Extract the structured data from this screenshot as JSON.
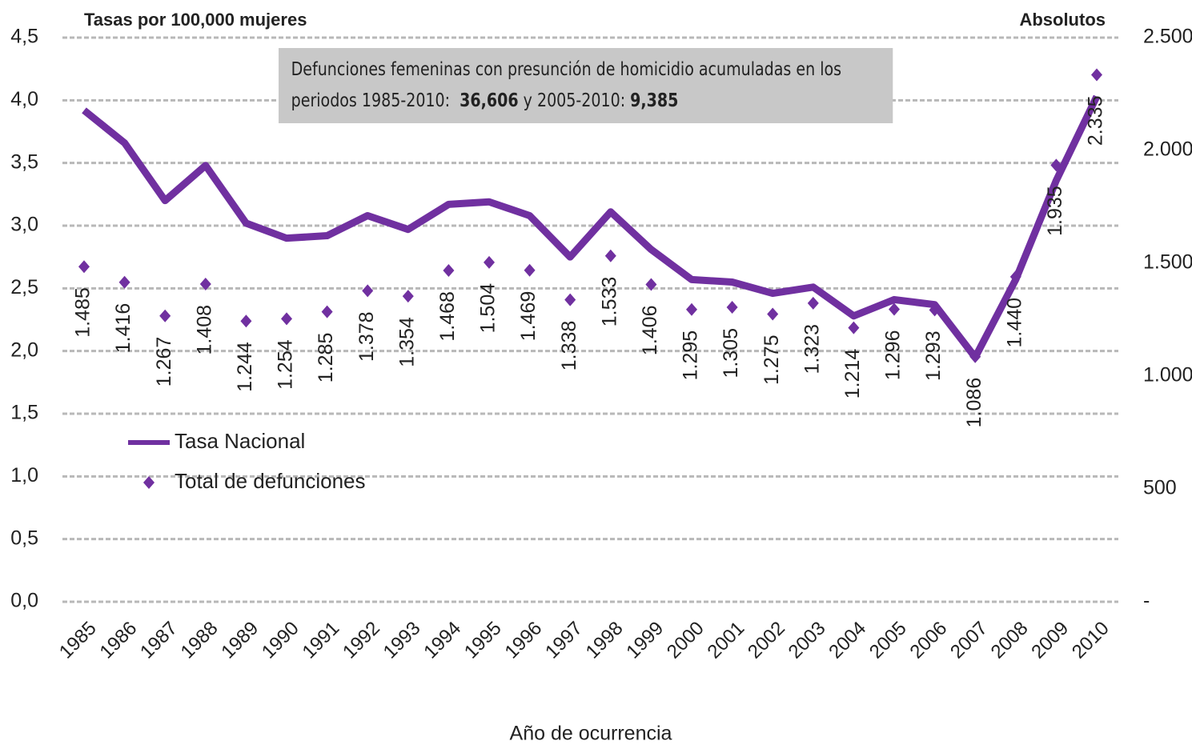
{
  "chart_data": {
    "type": "line",
    "y_title": "Tasas por 100,000 mujeres",
    "y2_title": "Absolutos",
    "x_title": "Año de ocurrencia",
    "annotation_parts": [
      {
        "text": "Defunciones femeninas con presunción de homicidio acumuladas en los periodos 1985-2010:  ",
        "bold": false
      },
      {
        "text": "36,606",
        "bold": true
      },
      {
        "text": " y 2005-2010: ",
        "bold": false
      },
      {
        "text": "9,385",
        "bold": true
      }
    ],
    "categories": [
      "1985",
      "1986",
      "1987",
      "1988",
      "1989",
      "1990",
      "1991",
      "1992",
      "1993",
      "1994",
      "1995",
      "1996",
      "1997",
      "1998",
      "1999",
      "2000",
      "2001",
      "2002",
      "2003",
      "2004",
      "2005",
      "2006",
      "2007",
      "2008",
      "2009",
      "2010"
    ],
    "series": [
      {
        "name": "Tasa Nacional",
        "color": "#7030a0",
        "values": [
          3.92,
          3.66,
          3.2,
          3.48,
          3.02,
          2.9,
          2.92,
          3.08,
          2.97,
          3.17,
          3.19,
          3.08,
          2.75,
          3.11,
          2.81,
          2.57,
          2.55,
          2.46,
          2.51,
          2.28,
          2.41,
          2.37,
          1.95,
          2.57,
          3.36,
          4.03
        ]
      },
      {
        "name": "Total de defunciones",
        "type": "scatter",
        "axis": "y2",
        "color": "#7030a0",
        "values": [
          1485,
          1416,
          1267,
          1408,
          1244,
          1254,
          1285,
          1378,
          1354,
          1468,
          1504,
          1469,
          1338,
          1533,
          1406,
          1295,
          1305,
          1275,
          1323,
          1214,
          1296,
          1293,
          1086,
          1440,
          1935,
          2335
        ],
        "value_labels": [
          "1.485",
          "1.416",
          "1.267",
          "1.408",
          "1.244",
          "1.254",
          "1.285",
          "1.378",
          "1.354",
          "1.468",
          "1.504",
          "1.469",
          "1.338",
          "1.533",
          "1.406",
          "1.295",
          "1.305",
          "1.275",
          "1.323",
          "1.214",
          "1.296",
          "1.293",
          "1.086",
          "1.440",
          "1.935",
          "2.335"
        ]
      }
    ],
    "ylim": [
      0,
      4.5
    ],
    "yticks": [
      {
        "value": 0,
        "label": "0,0"
      },
      {
        "value": 0.5,
        "label": "0,5"
      },
      {
        "value": 1,
        "label": "1,0"
      },
      {
        "value": 1.5,
        "label": "1,5"
      },
      {
        "value": 2,
        "label": "2,0"
      },
      {
        "value": 2.5,
        "label": "2,5"
      },
      {
        "value": 3,
        "label": "3,0"
      },
      {
        "value": 3.5,
        "label": "3,5"
      },
      {
        "value": 4,
        "label": "4,0"
      },
      {
        "value": 4.5,
        "label": "4,5"
      }
    ],
    "y2lim": [
      0,
      2500
    ],
    "y2ticks": [
      {
        "value": 0,
        "label": "-"
      },
      500,
      {
        "value": 1000,
        "label": "1.000"
      },
      {
        "value": 1500,
        "label": "1.500"
      },
      {
        "value": 2000,
        "label": "2.000"
      },
      {
        "value": 2500,
        "label": "2.500"
      }
    ],
    "grid": true,
    "legend": "left"
  }
}
